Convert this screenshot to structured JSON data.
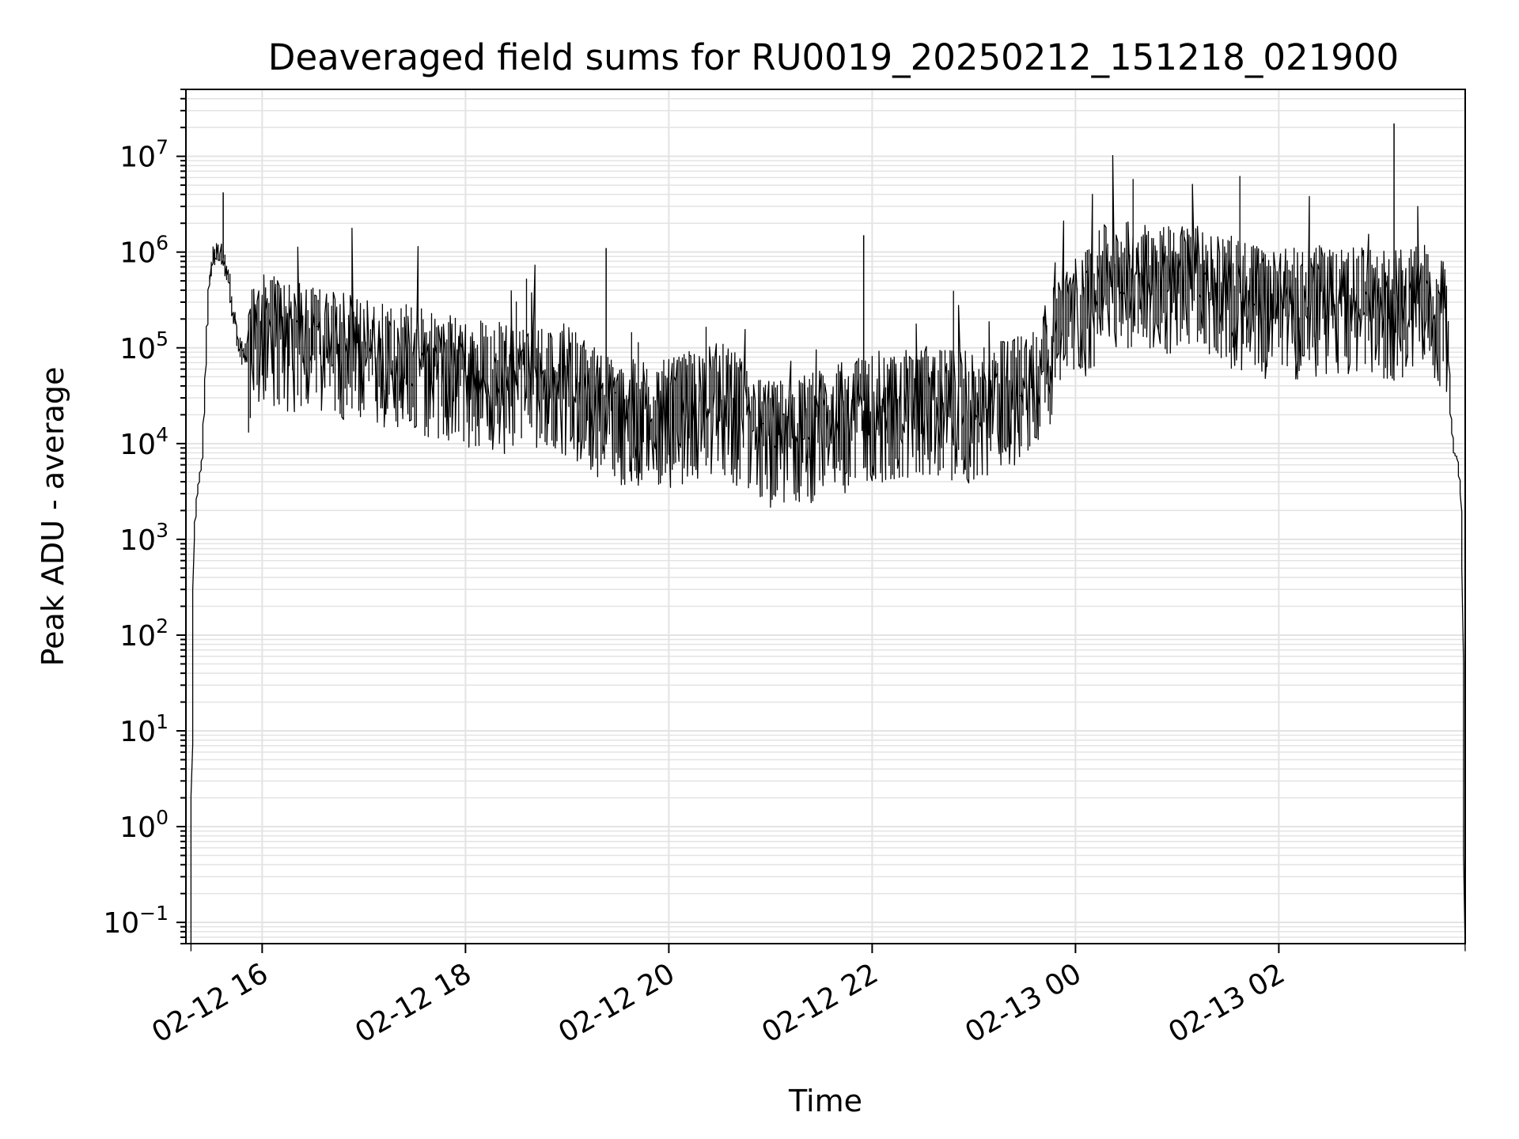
{
  "chart_data": {
    "type": "line",
    "title": "Deaveraged field sums for RU0019_20250212_151218_021900",
    "xlabel": "Time",
    "ylabel": "Peak ADU - average",
    "yscale": "log",
    "grid": true,
    "line_color": "#000000",
    "grid_color": "#e3e3e3",
    "xlim": [
      "2025-02-12 15:15",
      "2025-02-13 03:50"
    ],
    "ylim": [
      0.06,
      50000000
    ],
    "x_ticks": [
      {
        "value": "2025-02-12 16:00",
        "label": "02-12 16"
      },
      {
        "value": "2025-02-12 18:00",
        "label": "02-12 18"
      },
      {
        "value": "2025-02-12 20:00",
        "label": "02-12 20"
      },
      {
        "value": "2025-02-12 22:00",
        "label": "02-12 22"
      },
      {
        "value": "2025-02-13 00:00",
        "label": "02-13 00"
      },
      {
        "value": "2025-02-13 02:00",
        "label": "02-13 02"
      }
    ],
    "y_ticks": [
      {
        "value": 0.1,
        "base": "10",
        "exp": "−1"
      },
      {
        "value": 1,
        "base": "10",
        "exp": "0"
      },
      {
        "value": 10,
        "base": "10",
        "exp": "1"
      },
      {
        "value": 100,
        "base": "10",
        "exp": "2"
      },
      {
        "value": 1000,
        "base": "10",
        "exp": "3"
      },
      {
        "value": 10000,
        "base": "10",
        "exp": "4"
      },
      {
        "value": 100000,
        "base": "10",
        "exp": "5"
      },
      {
        "value": 1000000,
        "base": "10",
        "exp": "6"
      },
      {
        "value": 10000000,
        "base": "10",
        "exp": "7"
      }
    ],
    "series": [
      {
        "x": [
          "2025-02-12 15:18",
          "2025-02-12 15:20",
          "2025-02-12 15:22",
          "2025-02-12 15:25",
          "2025-02-12 15:27",
          "2025-02-12 15:29",
          "2025-02-12 15:31",
          "2025-02-12 15:35",
          "2025-02-12 15:38",
          "2025-02-12 15:41",
          "2025-02-12 15:44",
          "2025-02-12 15:47",
          "2025-02-12 15:50",
          "2025-02-12 15:52",
          "2025-02-12 15:55",
          "2025-02-12 16:00",
          "2025-02-12 16:30",
          "2025-02-12 17:00",
          "2025-02-12 17:30",
          "2025-02-12 18:00",
          "2025-02-12 18:30",
          "2025-02-12 19:00",
          "2025-02-12 19:30",
          "2025-02-12 20:00",
          "2025-02-12 20:30",
          "2025-02-12 21:00",
          "2025-02-12 21:30",
          "2025-02-12 22:00",
          "2025-02-12 22:30",
          "2025-02-12 23:00",
          "2025-02-12 23:30",
          "2025-02-13 00:00",
          "2025-02-13 00:20",
          "2025-02-13 00:45",
          "2025-02-13 01:10",
          "2025-02-13 01:30",
          "2025-02-13 02:00",
          "2025-02-13 02:30",
          "2025-02-13 03:00",
          "2025-02-13 03:30",
          "2025-02-13 03:40",
          "2025-02-13 03:42",
          "2025-02-13 03:44",
          "2025-02-13 03:46",
          "2025-02-13 03:48",
          "2025-02-13 03:49",
          "2025-02-13 03:50"
        ],
        "y": [
          0.05,
          1000,
          3000,
          7000,
          60000,
          400000,
          900000,
          1000000,
          800000,
          500000,
          200000,
          100000,
          80000,
          90000,
          150000,
          200000,
          150000,
          110000,
          100000,
          70000,
          60000,
          60000,
          25000,
          25000,
          40000,
          15000,
          20000,
          30000,
          35000,
          30000,
          50000,
          300000,
          700000,
          700000,
          650000,
          500000,
          350000,
          400000,
          350000,
          400000,
          250000,
          20000,
          8000,
          7000,
          3000,
          500,
          0.05
        ]
      }
    ],
    "annotations": []
  }
}
